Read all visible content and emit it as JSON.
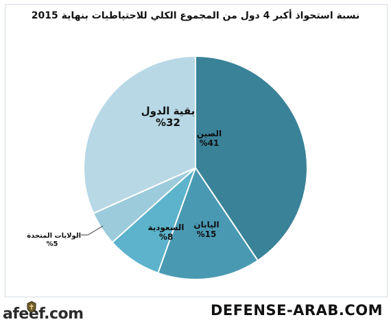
{
  "chart_data": {
    "type": "pie",
    "title": "نسبة استحواذ أكبر 4 دول من المجموع الكلي للاحتياطيات بنهاية 2015",
    "slices": [
      {
        "name": "الصين",
        "value": 41,
        "pct_label": "%41",
        "color": "#3a8298"
      },
      {
        "name": "اليابان",
        "value": 15,
        "pct_label": "%15",
        "color": "#4a99b3"
      },
      {
        "name": "السعودية",
        "value": 8,
        "pct_label": "%8",
        "color": "#5cb3cb"
      },
      {
        "name": "الولايات المتحدة",
        "value": 5,
        "pct_label": "%5",
        "color": "#9ccbdb"
      },
      {
        "name": "بقية الدول",
        "value": 32,
        "pct_label": "%32",
        "color": "#b8d8e6"
      }
    ]
  },
  "watermark": "DEFENSE-ARAB.COM",
  "logo": "afeef.com"
}
